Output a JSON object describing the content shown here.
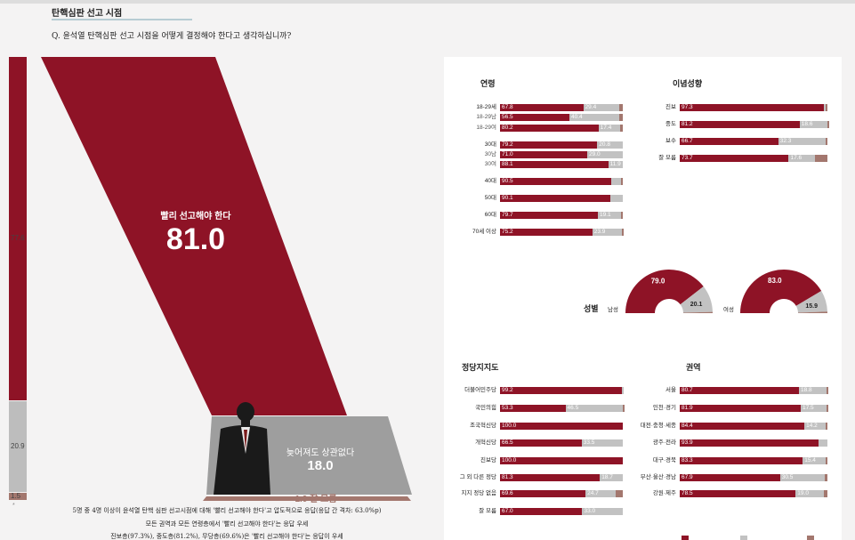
{
  "header": {
    "section_title": "탄핵심판 선고 시점",
    "question": "Q. 윤석열 탄핵심판 선고 시점을 어떻게 결정해야 한다고 생각하십니까?"
  },
  "colors": {
    "red": "#8e1326",
    "gray": "#c2c2c2",
    "brown": "#a3776e"
  },
  "left_bar": {
    "red": "77.6",
    "gray": "20.9",
    "brown": "1.5",
    "mark": "*"
  },
  "overall": {
    "main_label": "빨리 선고해야 한다",
    "main_value": "81.0",
    "mid_label": "늦어져도 상관없다",
    "mid_value": "18.0",
    "small_label": "1.0 잘 모름"
  },
  "notes": [
    "5명 중 4명 이상이 윤석열 탄핵 심판 선고시점에 대해 '빨리 선고해야 한다'고 압도적으로 응답(응답 간 격차: 63.0%p)",
    "모든 권역과 모든 연령층에서 '빨리 선고해야 한다'는 응답 우세",
    "진보층(97.3%), 중도층(81.2%), 무당층(69.6%)은 '빨리 선고해야 한다'는 응답이 우세"
  ],
  "chart_data": [
    {
      "type": "bar",
      "title": "연령",
      "rows": [
        {
          "label": "18-29세",
          "sub": false,
          "values": [
            67.8,
            29.4,
            2.8
          ]
        },
        {
          "label": "18-29남",
          "sub": true,
          "values": [
            56.5,
            40.4,
            3.1
          ]
        },
        {
          "label": "18-29여",
          "sub": true,
          "values": [
            80.2,
            17.4,
            2.4
          ]
        },
        {
          "label": "30대",
          "sub": false,
          "values": [
            79.2,
            20.8,
            0
          ]
        },
        {
          "label": "30남",
          "sub": true,
          "values": [
            71.0,
            29.0,
            0
          ]
        },
        {
          "label": "30여",
          "sub": true,
          "values": [
            88.1,
            11.9,
            0
          ]
        },
        {
          "label": "40대",
          "sub": false,
          "values": [
            90.5,
            8.4,
            1.1
          ]
        },
        {
          "label": "50대",
          "sub": false,
          "values": [
            90.1,
            9.9,
            0
          ]
        },
        {
          "label": "60대",
          "sub": false,
          "values": [
            79.7,
            19.1,
            1.2
          ]
        },
        {
          "label": "70세 이상",
          "sub": false,
          "values": [
            75.2,
            23.9,
            0.9
          ]
        }
      ]
    },
    {
      "type": "bar",
      "title": "이념성향",
      "rows": [
        {
          "label": "진보",
          "sub": false,
          "values": [
            97.3,
            1.7,
            1.0
          ]
        },
        {
          "label": "중도",
          "sub": false,
          "values": [
            81.2,
            18.6,
            0.2
          ]
        },
        {
          "label": "보수",
          "sub": false,
          "values": [
            66.7,
            32.3,
            1.0
          ]
        },
        {
          "label": "잘 모름",
          "sub": false,
          "values": [
            73.7,
            17.6,
            8.6
          ]
        }
      ]
    },
    {
      "type": "pie",
      "title": "성별",
      "category": "남성",
      "values": [
        79.0,
        20.1,
        0.9
      ]
    },
    {
      "type": "pie",
      "title": "",
      "category": "여성",
      "values": [
        83.0,
        15.9,
        1.1
      ]
    },
    {
      "type": "bar",
      "title": "정당지지도",
      "rows": [
        {
          "label": "더불어민주당",
          "sub": false,
          "values": [
            99.2,
            0.8,
            0
          ]
        },
        {
          "label": "국민의힘",
          "sub": false,
          "values": [
            53.3,
            46.5,
            0.2
          ]
        },
        {
          "label": "조국혁신당",
          "sub": false,
          "values": [
            100.0,
            0,
            0
          ]
        },
        {
          "label": "개혁신당",
          "sub": false,
          "values": [
            66.5,
            33.5,
            0
          ]
        },
        {
          "label": "진보당",
          "sub": false,
          "values": [
            100.0,
            0,
            0
          ]
        },
        {
          "label": "그 외 다른 정당",
          "sub": false,
          "values": [
            81.3,
            18.7,
            0
          ]
        },
        {
          "label": "지지 정당 없음",
          "sub": false,
          "values": [
            69.6,
            24.7,
            5.6
          ]
        },
        {
          "label": "잘 모름",
          "sub": false,
          "values": [
            67.0,
            33.0,
            0
          ]
        }
      ]
    },
    {
      "type": "bar",
      "title": "권역",
      "rows": [
        {
          "label": "서울",
          "sub": false,
          "values": [
            80.7,
            18.8,
            0.5
          ]
        },
        {
          "label": "인천·경기",
          "sub": false,
          "values": [
            81.9,
            17.5,
            0.6
          ]
        },
        {
          "label": "대전·충청·세종",
          "sub": false,
          "values": [
            84.4,
            14.2,
            1.4
          ]
        },
        {
          "label": "광주·전라",
          "sub": false,
          "values": [
            93.9,
            6.1,
            0
          ]
        },
        {
          "label": "대구·경북",
          "sub": false,
          "values": [
            83.3,
            15.4,
            1.3
          ]
        },
        {
          "label": "부산·울산·경남",
          "sub": false,
          "values": [
            67.9,
            30.5,
            1.6
          ]
        },
        {
          "label": "강원·제주",
          "sub": false,
          "values": [
            78.5,
            19.0,
            2.5
          ]
        }
      ]
    }
  ]
}
